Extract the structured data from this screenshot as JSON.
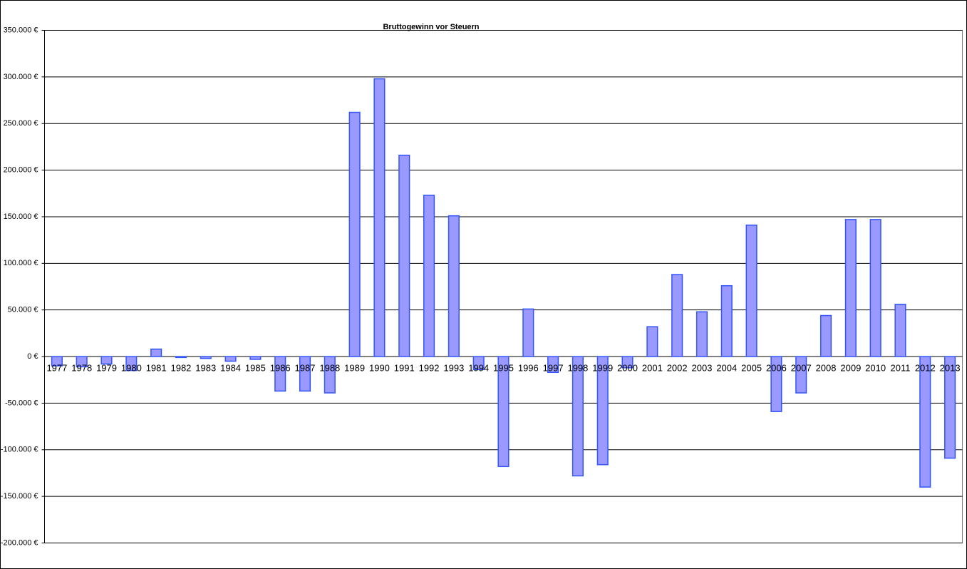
{
  "chart_data": {
    "type": "bar",
    "title": "Bruttogewinn  vor Steuern",
    "categories": [
      "1977",
      "1978",
      "1979",
      "1980",
      "1981",
      "1982",
      "1983",
      "1984",
      "1985",
      "1986",
      "1987",
      "1988",
      "1989",
      "1990",
      "1991",
      "1992",
      "1993",
      "1994",
      "1995",
      "1996",
      "1997",
      "1998",
      "1999",
      "2000",
      "2001",
      "2002",
      "2003",
      "2004",
      "2005",
      "2006",
      "2007",
      "2008",
      "2009",
      "2010",
      "2011",
      "2012",
      "2013"
    ],
    "values": [
      -10000,
      -11000,
      -8000,
      -15000,
      8000,
      -1000,
      -2000,
      -5000,
      -3000,
      -37000,
      -37000,
      -39000,
      262000,
      298000,
      216000,
      173000,
      151000,
      -14000,
      -118000,
      51000,
      -17000,
      -128000,
      -116000,
      -12000,
      32000,
      88000,
      48000,
      76000,
      141000,
      -59000,
      -39000,
      44000,
      147000,
      147000,
      56000,
      -140000,
      -109000
    ],
    "color": "#9999ff",
    "ylim": [
      -200000,
      350000
    ],
    "yticks": [
      {
        "value": -200000,
        "label": "-200.000 €"
      },
      {
        "value": -150000,
        "label": "-150.000 €"
      },
      {
        "value": -100000,
        "label": "-100.000 €"
      },
      {
        "value": -50000,
        "label": "-50.000 €"
      },
      {
        "value": 0,
        "label": "0 €"
      },
      {
        "value": 50000,
        "label": "50.000 €"
      },
      {
        "value": 100000,
        "label": "100.000 €"
      },
      {
        "value": 150000,
        "label": "150.000 €"
      },
      {
        "value": 200000,
        "label": "200.000 €"
      },
      {
        "value": 250000,
        "label": "250.000 €"
      },
      {
        "value": 300000,
        "label": "300.000 €"
      },
      {
        "value": 350000,
        "label": "350.000 €"
      }
    ],
    "grid": true
  }
}
